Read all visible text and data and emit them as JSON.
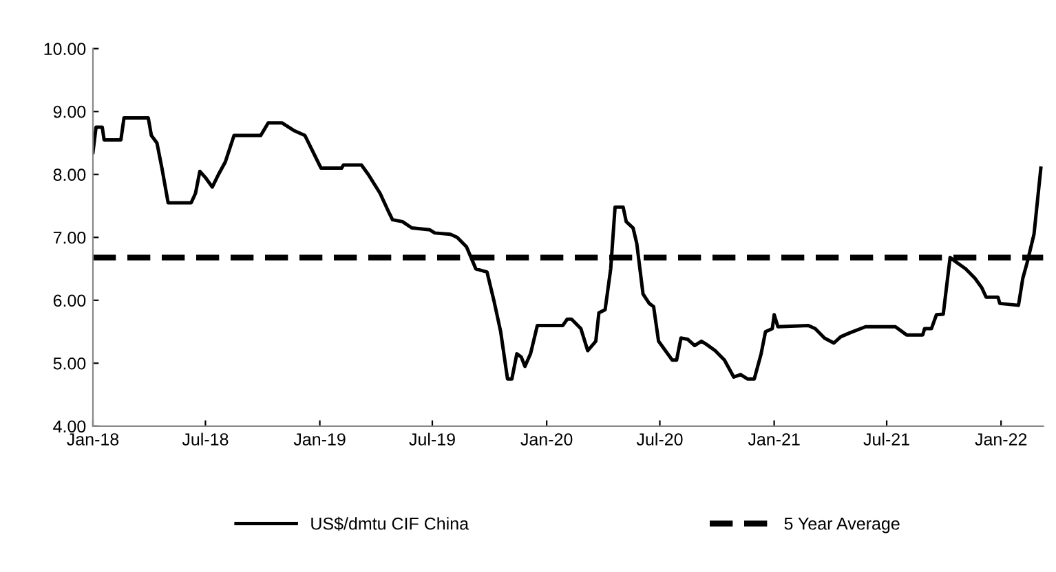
{
  "chart_data": {
    "type": "line",
    "x": [
      "2018-01-01",
      "2018-01-06",
      "2018-01-16",
      "2018-01-19",
      "2018-02-15",
      "2018-02-20",
      "2018-03-31",
      "2018-04-05",
      "2018-04-14",
      "2018-04-22",
      "2018-05-02",
      "2018-06-08",
      "2018-06-15",
      "2018-06-22",
      "2018-07-01",
      "2018-07-12",
      "2018-07-22",
      "2018-08-02",
      "2018-08-16",
      "2018-09-28",
      "2018-10-10",
      "2018-11-01",
      "2018-11-20",
      "2018-12-08",
      "2018-12-19",
      "2019-01-03",
      "2019-02-05",
      "2019-02-08",
      "2019-03-09",
      "2019-03-20",
      "2019-04-08",
      "2019-04-22",
      "2019-04-28",
      "2019-05-14",
      "2019-05-29",
      "2019-06-27",
      "2019-07-05",
      "2019-07-30",
      "2019-08-10",
      "2019-08-25",
      "2019-09-09",
      "2019-09-27",
      "2019-10-08",
      "2019-10-19",
      "2019-10-30",
      "2019-11-06",
      "2019-11-14",
      "2019-11-21",
      "2019-11-27",
      "2019-12-06",
      "2019-12-17",
      "2020-01-01",
      "2020-01-27",
      "2020-02-03",
      "2020-02-10",
      "2020-02-25",
      "2020-03-07",
      "2020-03-20",
      "2020-03-25",
      "2020-04-04",
      "2020-04-13",
      "2020-04-20",
      "2020-05-03",
      "2020-05-08",
      "2020-05-19",
      "2020-05-25",
      "2020-06-04",
      "2020-06-14",
      "2020-06-21",
      "2020-06-29",
      "2020-07-10",
      "2020-07-21",
      "2020-07-28",
      "2020-08-04",
      "2020-08-15",
      "2020-08-26",
      "2020-09-06",
      "2020-09-14",
      "2020-09-28",
      "2020-10-13",
      "2020-10-28",
      "2020-11-08",
      "2020-11-19",
      "2020-11-30",
      "2020-12-11",
      "2020-12-18",
      "2020-12-29",
      "2021-01-01",
      "2021-01-07",
      "2021-02-25",
      "2021-03-08",
      "2021-03-23",
      "2021-04-07",
      "2021-04-18",
      "2021-05-02",
      "2021-05-28",
      "2021-07-15",
      "2021-08-02",
      "2021-08-28",
      "2021-08-31",
      "2021-09-11",
      "2021-09-19",
      "2021-09-30",
      "2021-10-11",
      "2021-10-22",
      "2021-11-05",
      "2021-11-20",
      "2021-12-01",
      "2021-12-08",
      "2021-12-27",
      "2021-12-30",
      "2022-01-29",
      "2022-02-05",
      "2022-02-12",
      "2022-02-23",
      "2022-03-06"
    ],
    "series": [
      {
        "name": "US$/dmtu CIF China",
        "color": "#000000",
        "values": [
          8.35,
          8.75,
          8.75,
          8.55,
          8.55,
          8.9,
          8.9,
          8.62,
          8.5,
          8.1,
          7.55,
          7.55,
          7.7,
          8.05,
          7.95,
          7.8,
          8.0,
          8.2,
          8.62,
          8.62,
          8.82,
          8.82,
          8.7,
          8.62,
          8.4,
          8.1,
          8.1,
          8.15,
          8.15,
          8.0,
          7.7,
          7.4,
          7.28,
          7.25,
          7.15,
          7.12,
          7.07,
          7.05,
          7.0,
          6.85,
          6.5,
          6.45,
          6.0,
          5.5,
          4.75,
          4.75,
          5.15,
          5.1,
          4.95,
          5.15,
          5.6,
          5.6,
          5.6,
          5.7,
          5.7,
          5.55,
          5.2,
          5.35,
          5.8,
          5.85,
          6.5,
          7.48,
          7.48,
          7.25,
          7.15,
          6.9,
          6.1,
          5.95,
          5.9,
          5.35,
          5.2,
          5.05,
          5.05,
          5.4,
          5.38,
          5.28,
          5.35,
          5.3,
          5.2,
          5.05,
          4.78,
          4.82,
          4.75,
          4.75,
          5.15,
          5.5,
          5.55,
          5.77,
          5.58,
          5.6,
          5.55,
          5.4,
          5.32,
          5.42,
          5.48,
          5.58,
          5.58,
          5.45,
          5.45,
          5.55,
          5.55,
          5.77,
          5.78,
          6.68,
          6.6,
          6.5,
          6.35,
          6.2,
          6.05,
          6.05,
          5.95,
          5.92,
          6.35,
          6.6,
          7.05,
          8.1
        ]
      }
    ],
    "ref_lines": [
      {
        "axis": "y",
        "value": 6.68,
        "label": "5 Year Average",
        "color": "#000000",
        "line_style": "dashed"
      }
    ],
    "xlim": [
      "2018-01-01",
      "2022-03-10"
    ],
    "xticks": [
      {
        "value": "2018-01-01",
        "label": "Jan-18"
      },
      {
        "value": "2018-07-01",
        "label": "Jul-18"
      },
      {
        "value": "2019-01-01",
        "label": "Jan-19"
      },
      {
        "value": "2019-07-01",
        "label": "Jul-19"
      },
      {
        "value": "2020-01-01",
        "label": "Jan-20"
      },
      {
        "value": "2020-07-01",
        "label": "Jul-20"
      },
      {
        "value": "2021-01-01",
        "label": "Jan-21"
      },
      {
        "value": "2021-07-01",
        "label": "Jul-21"
      },
      {
        "value": "2022-01-01",
        "label": "Jan-22"
      }
    ],
    "ylim": [
      4,
      10
    ],
    "yticks": [
      {
        "value": 4,
        "label": "4.00"
      },
      {
        "value": 5,
        "label": "5.00"
      },
      {
        "value": 6,
        "label": "6.00"
      },
      {
        "value": 7,
        "label": "7.00"
      },
      {
        "value": 8,
        "label": "8.00"
      },
      {
        "value": 9,
        "label": "9.00"
      },
      {
        "value": 10,
        "label": "10.00"
      }
    ],
    "grid": false,
    "legend": "bottom",
    "line_style": "solid",
    "marker": "none"
  }
}
